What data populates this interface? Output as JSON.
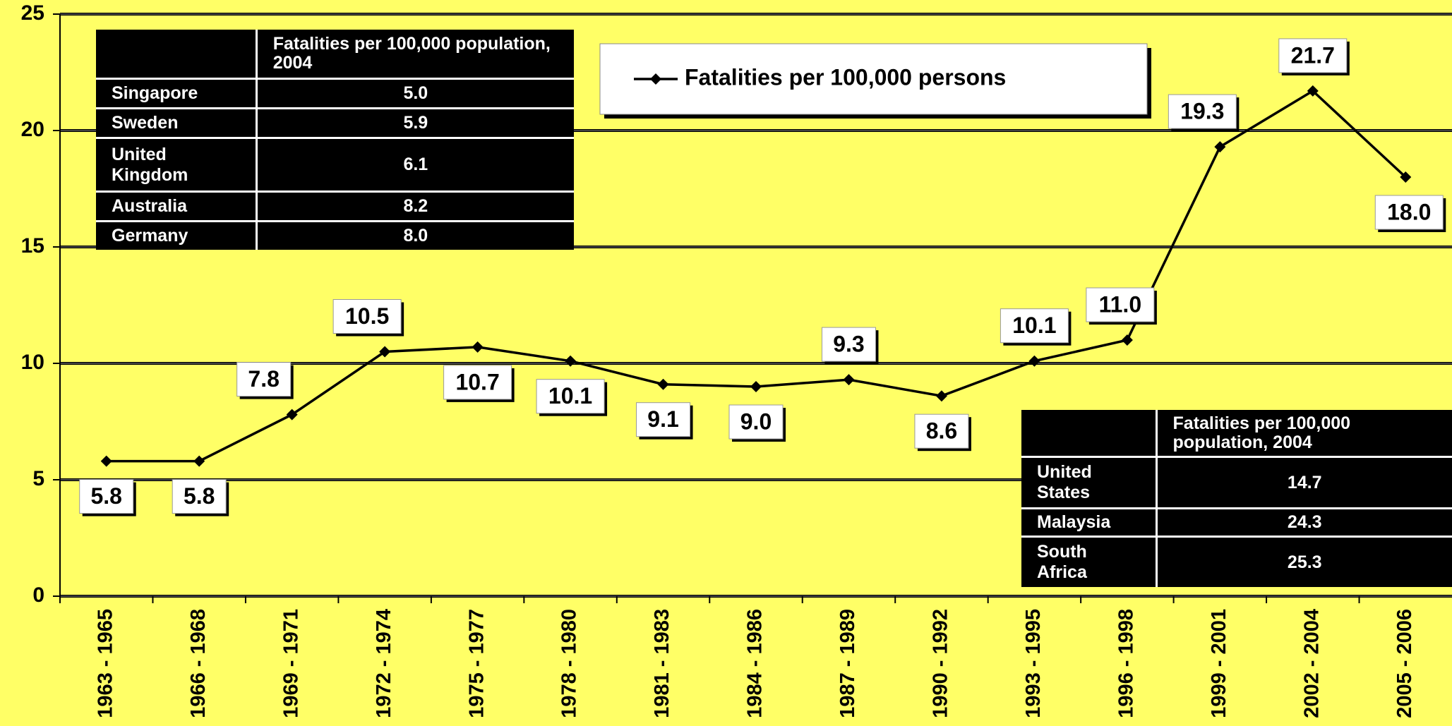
{
  "chart_data": {
    "type": "line",
    "categories": [
      "1963 - 1965",
      "1966 - 1968",
      "1969 - 1971",
      "1972 - 1974",
      "1975 - 1977",
      "1978 - 1980",
      "1981 - 1983",
      "1984 - 1986",
      "1987 - 1989",
      "1990 - 1992",
      "1993 - 1995",
      "1996 - 1998",
      "1999 - 2001",
      "2002 - 2004",
      "2005 - 2006"
    ],
    "series": [
      {
        "name": "Fatalities per 100,000 persons",
        "color": "#000000",
        "values": [
          5.8,
          5.8,
          7.8,
          10.5,
          10.7,
          10.1,
          9.1,
          9.0,
          9.3,
          8.6,
          10.1,
          11.0,
          19.3,
          21.7,
          18.0
        ],
        "value_labels": [
          "5.8",
          "5.8",
          "7.8",
          "10.5",
          "10.7",
          "10.1",
          "9.1",
          "9.0",
          "9.3",
          "8.6",
          "10.1",
          "11.0",
          "19.3",
          "21.7",
          "18.0"
        ]
      }
    ],
    "ylim": [
      0,
      25
    ],
    "yticks": [
      0,
      5,
      10,
      15,
      20,
      25
    ],
    "grid": true,
    "legend": "top",
    "tables": [
      {
        "header": "Fatalities per 100,000 population, 2004",
        "rows": [
          [
            "Singapore",
            "5.0"
          ],
          [
            "Sweden",
            "5.9"
          ],
          [
            "United Kingdom",
            "6.1"
          ],
          [
            "Australia",
            "8.2"
          ],
          [
            "Germany",
            "8.0"
          ]
        ]
      },
      {
        "header": "Fatalities per 100,000 population, 2004",
        "rows": [
          [
            "United States",
            "14.7"
          ],
          [
            "Malaysia",
            "24.3"
          ],
          [
            "South Africa",
            "25.3"
          ]
        ]
      }
    ]
  }
}
